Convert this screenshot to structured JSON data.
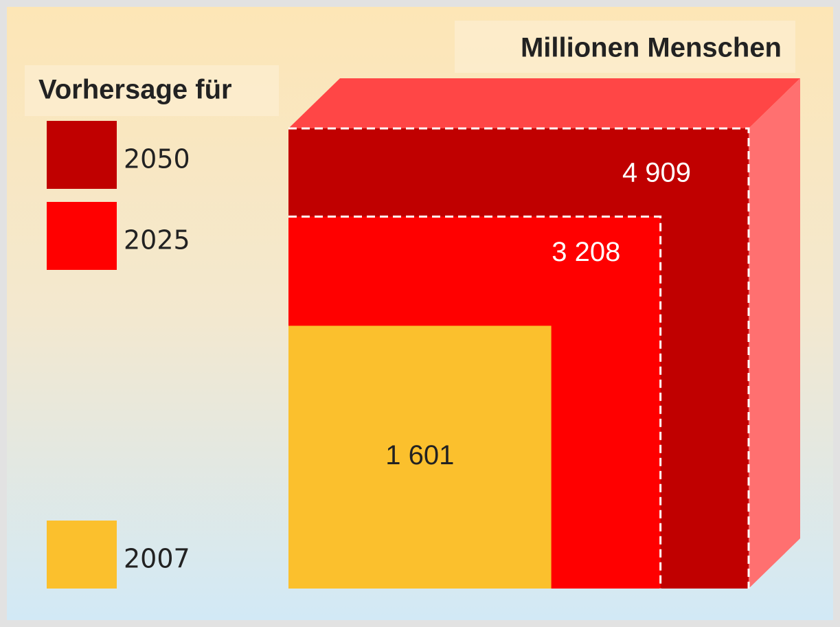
{
  "chart_data": {
    "type": "square",
    "title": "Millionen Menschen",
    "legend_title": "Vorhersage für",
    "categories": [
      "2050",
      "2025",
      "2007"
    ],
    "values": [
      4909,
      3208,
      1601
    ],
    "value_labels": [
      "4 909",
      "3 208",
      "1 601"
    ],
    "colors": [
      "#c00000",
      "#ff0000",
      "#fbc02d"
    ],
    "label_colors": [
      "#ffffff",
      "#ffffff",
      "#222222"
    ]
  }
}
